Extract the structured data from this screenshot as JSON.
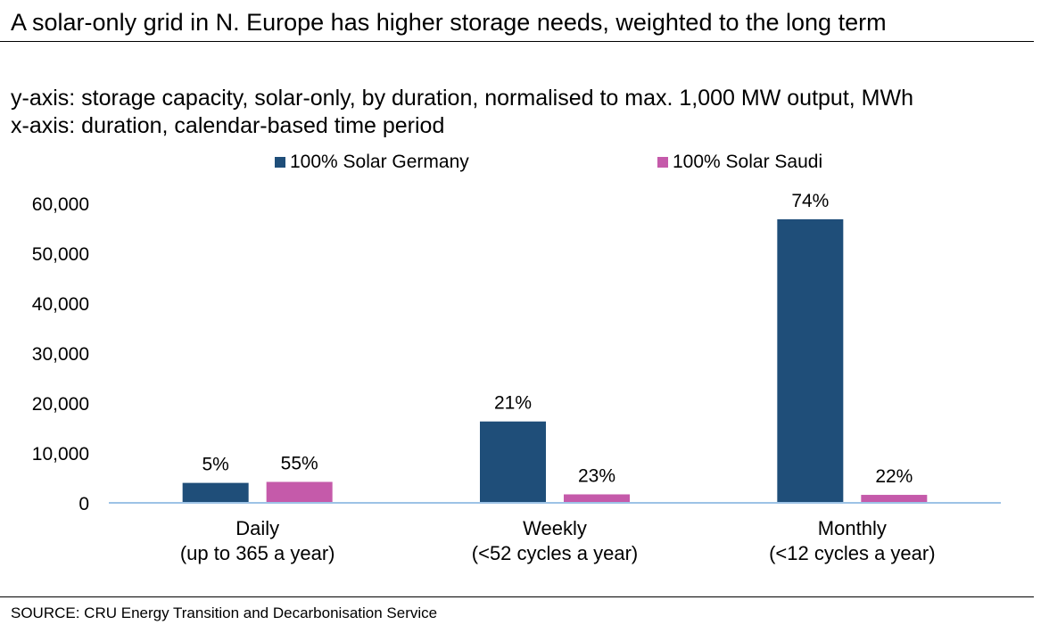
{
  "header": {
    "title": "A solar-only grid in N. Europe has higher storage needs, weighted to the long term",
    "subtitle_line1": "y-axis: storage capacity, solar-only, by duration, normalised to max. 1,000 MW output, MWh",
    "subtitle_line2": "x-axis: duration, calendar-based time period"
  },
  "footer": {
    "source": "SOURCE: CRU Energy Transition and Decarbonisation Service"
  },
  "colors": {
    "germany": "#1f4e79",
    "saudi": "#c55aaa",
    "axis": "#9dc3e6"
  },
  "chart_data": {
    "type": "bar",
    "title": "",
    "xlabel": "",
    "ylabel": "",
    "categories": [
      [
        "Daily",
        "(up to 365 a year)"
      ],
      [
        "Weekly",
        "(<52 cycles a year)"
      ],
      [
        "Monthly",
        "(<12 cycles a year)"
      ]
    ],
    "series": [
      {
        "name": "100% Solar Germany",
        "values": [
          4000,
          16300,
          56800
        ],
        "labels": [
          "5%",
          "21%",
          "74%"
        ]
      },
      {
        "name": "100% Solar Saudi",
        "values": [
          4200,
          1700,
          1600
        ],
        "labels": [
          "55%",
          "23%",
          "22%"
        ]
      }
    ],
    "ylim": [
      0,
      60000
    ],
    "yticks": [
      0,
      10000,
      20000,
      30000,
      40000,
      50000,
      60000
    ],
    "ytick_labels": [
      "0",
      "10,000",
      "20,000",
      "30,000",
      "40,000",
      "50,000",
      "60,000"
    ],
    "grid": false,
    "legend_position": "top"
  }
}
